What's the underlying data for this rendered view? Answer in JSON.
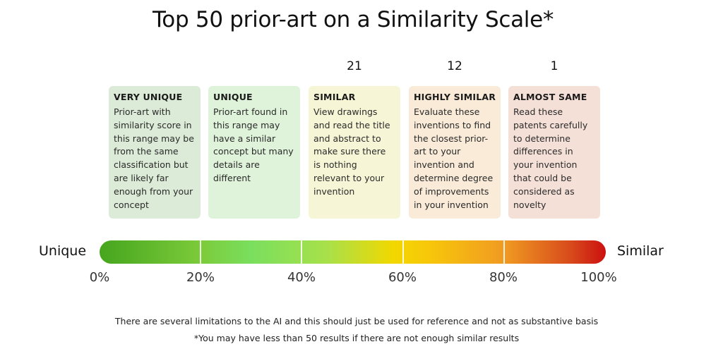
{
  "title": "Top 50 prior-art on a Similarity Scale*",
  "colors": {
    "very_unique_bg": "#dcebd7",
    "unique_bg": "#dff3da",
    "similar_bg": "#f6f6d6",
    "highly_similar_bg": "#f9ebd8",
    "almost_same_bg": "#f5e0d8",
    "gradient_start": "#46a51e",
    "gradient_mid": "#f2d800",
    "gradient_end": "#cc1010"
  },
  "chart_data": {
    "type": "bar",
    "categories": [
      "VERY UNIQUE",
      "UNIQUE",
      "SIMILAR",
      "HIGHLY SIMILAR",
      "ALMOST SAME"
    ],
    "ranges": [
      "0%-20%",
      "20%-40%",
      "40%-60%",
      "60%-80%",
      "80%-100%"
    ],
    "counts": [
      "",
      "",
      "21",
      "12",
      "1"
    ],
    "x_tick_labels": [
      "0%",
      "20%",
      "40%",
      "60%",
      "80%",
      "100%"
    ],
    "x_range": [
      0,
      100
    ],
    "left_label": "Unique",
    "right_label": "Similar"
  },
  "cards": [
    {
      "title": "VERY UNIQUE",
      "body": "Prior-art with\nsimilarity score in\nthis range may be\nfrom the same\nclassification but\nare likely far\nenough from your\nconcept"
    },
    {
      "title": "UNIQUE",
      "body": "Prior-art found in\nthis range may\nhave a similar\nconcept but many\ndetails are\ndifferent"
    },
    {
      "title": "SIMILAR",
      "body": "View drawings\nand read the title\nand abstract to\nmake sure there\nis nothing\nrelevant to your\ninvention"
    },
    {
      "title": "HIGHLY SIMILAR",
      "body": "Evaluate these\ninventions to find\nthe closest prior-\nart to your\ninvention and\ndetermine degree\nof improvements\nin your invention"
    },
    {
      "title": "ALMOST SAME",
      "body": "Read these\npatents carefully\nto determine\ndifferences in\nyour invention\nthat could be\nconsidered as\nnovelty"
    }
  ],
  "footnotes": {
    "line1": "There are several limitations to the AI and this should just be used for reference and not as substantive basis",
    "line2": "*You may have less than 50 results if there are not enough similar results"
  }
}
